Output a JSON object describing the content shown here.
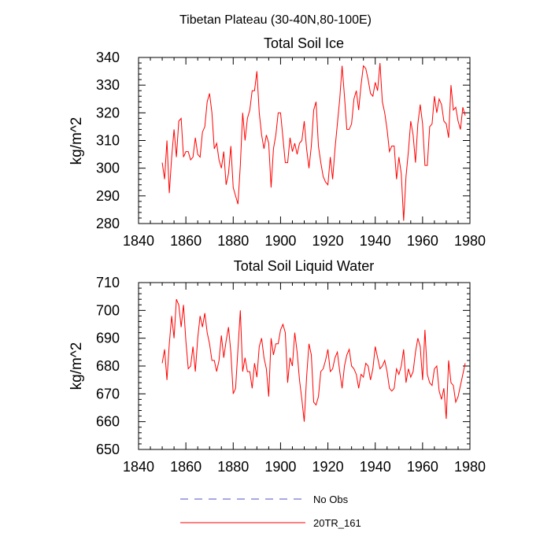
{
  "figure": {
    "suptitle": "Tibetan Plateau (30-40N,80-100E)"
  },
  "legend": {
    "items": [
      {
        "label": "No Obs",
        "color": "#5050c8",
        "dashed": true
      },
      {
        "label": "20TR_161",
        "color": "#ff0000",
        "dashed": false
      }
    ]
  },
  "chart_data": [
    {
      "type": "line",
      "title": "Total Soil Ice",
      "xlabel": "",
      "ylabel": "kg/m^2",
      "xlim": [
        1840,
        1980
      ],
      "ylim": [
        280,
        340
      ],
      "xticks": [
        1840,
        1860,
        1880,
        1900,
        1920,
        1940,
        1960,
        1980
      ],
      "yticks": [
        280,
        290,
        300,
        310,
        320,
        330,
        340
      ],
      "x_start": 1850,
      "x_step": 1,
      "series": [
        {
          "name": "20TR_161",
          "color": "#ff0000",
          "values": [
            302,
            296,
            310,
            291,
            304,
            314,
            304,
            317,
            318,
            304,
            306,
            306,
            303,
            304,
            311,
            305,
            304,
            313,
            315,
            324,
            327,
            320,
            307,
            309,
            303,
            300,
            306,
            294,
            298,
            308,
            293,
            290,
            287,
            301,
            320,
            310,
            318,
            321,
            328,
            328,
            335,
            320,
            312,
            307,
            312,
            309,
            293,
            307,
            312,
            320,
            320,
            311,
            302,
            302,
            311,
            306,
            309,
            305,
            309,
            310,
            317,
            307,
            300,
            308,
            321,
            324,
            308,
            302,
            297,
            295,
            294,
            304,
            296,
            307,
            316,
            325,
            337,
            326,
            314,
            314,
            316,
            325,
            328,
            321,
            330,
            337,
            336,
            332,
            327,
            326,
            331,
            328,
            338,
            324,
            320,
            314,
            306,
            308,
            308,
            296,
            304,
            298,
            281,
            297,
            306,
            317,
            312,
            302,
            316,
            323,
            316,
            301,
            301,
            315,
            316,
            326,
            320,
            325,
            323,
            317,
            316,
            311,
            330,
            321,
            322,
            317,
            314,
            322,
            319
          ]
        }
      ]
    },
    {
      "type": "line",
      "title": "Total Soil Liquid Water",
      "xlabel": "",
      "ylabel": "kg/m^2",
      "xlim": [
        1840,
        1980
      ],
      "ylim": [
        650,
        710
      ],
      "xticks": [
        1840,
        1860,
        1880,
        1900,
        1920,
        1940,
        1960,
        1980
      ],
      "yticks": [
        650,
        660,
        670,
        680,
        690,
        700,
        710
      ],
      "x_start": 1850,
      "x_step": 1,
      "series": [
        {
          "name": "20TR_161",
          "color": "#ff0000",
          "values": [
            681,
            686,
            675,
            688,
            698,
            690,
            704,
            702,
            694,
            702,
            689,
            679,
            680,
            687,
            678,
            690,
            698,
            694,
            699,
            692,
            688,
            682,
            682,
            678,
            682,
            691,
            683,
            689,
            694,
            685,
            670,
            672,
            686,
            700,
            678,
            683,
            678,
            678,
            672,
            681,
            676,
            687,
            690,
            683,
            679,
            669,
            690,
            684,
            688,
            688,
            693,
            695,
            692,
            674,
            683,
            680,
            692,
            685,
            675,
            668,
            660,
            676,
            688,
            684,
            667,
            666,
            669,
            678,
            679,
            682,
            686,
            678,
            679,
            683,
            685,
            678,
            672,
            680,
            684,
            686,
            680,
            679,
            677,
            672,
            677,
            676,
            681,
            680,
            675,
            679,
            687,
            683,
            679,
            680,
            682,
            678,
            672,
            671,
            672,
            679,
            677,
            680,
            686,
            674,
            679,
            676,
            678,
            685,
            690,
            687,
            675,
            693,
            677,
            674,
            673,
            679,
            680,
            671,
            668,
            672,
            661,
            682,
            674,
            673,
            667,
            669,
            673,
            677,
            681
          ]
        }
      ]
    }
  ]
}
